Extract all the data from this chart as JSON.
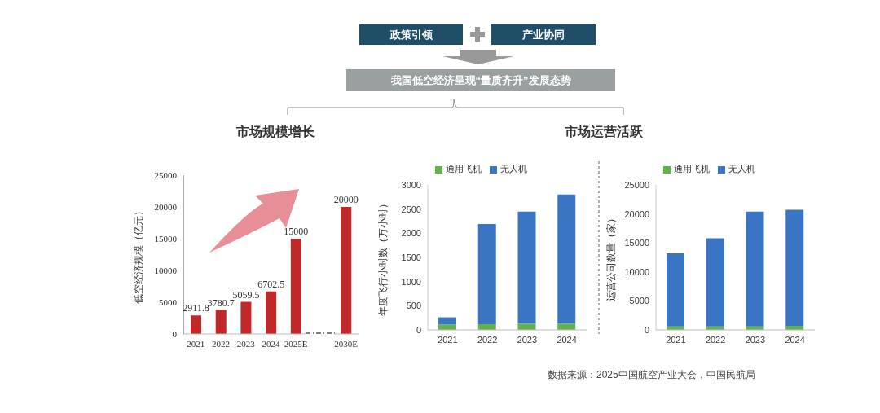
{
  "chart_data": [
    {
      "type": "bar",
      "title": "市场规模增长",
      "ylabel": "低空经济规模（亿元）",
      "annotations": [
        "政策引领",
        "产业协同",
        "我国低空经济呈现“量质齐升”发展态势"
      ],
      "categories": [
        "2021",
        "2022",
        "2023",
        "2024",
        "2025E",
        null,
        "2030E"
      ],
      "values": [
        2911.8,
        3780.7,
        5059.5,
        6702.5,
        15000,
        null,
        20000
      ],
      "color": "#c0282a",
      "ylim": [
        0,
        25000
      ],
      "yticks": [
        0,
        5000,
        10000,
        15000,
        20000,
        25000
      ],
      "data_labels": true
    },
    {
      "type": "bar",
      "title": "市场运营活跃",
      "ylabel": "年度飞行小时数（万小时）",
      "categories": [
        "2021",
        "2022",
        "2023",
        "2024"
      ],
      "stacked": true,
      "legend": "top",
      "ylim": [
        0,
        3000
      ],
      "yticks": [
        0,
        500,
        1000,
        1500,
        2000,
        2500,
        3000
      ],
      "series": [
        {
          "name": "通用飞机",
          "color": "#62b34a",
          "values": [
            110,
            120,
            130,
            130
          ]
        },
        {
          "name": "无人机",
          "color": "#3a75c4",
          "values": [
            150,
            2070,
            2320,
            2670
          ]
        }
      ]
    },
    {
      "type": "bar",
      "ylabel": "运营公司数量（家）",
      "categories": [
        "2021",
        "2022",
        "2023",
        "2024"
      ],
      "stacked": true,
      "legend": "top",
      "ylim": [
        0,
        25000
      ],
      "yticks": [
        0,
        5000,
        10000,
        15000,
        20000,
        25000
      ],
      "annotations": [
        "数据来源：2025中国航空产业大会，中国民航局"
      ],
      "series": [
        {
          "name": "通用飞机",
          "color": "#62b34a",
          "values": [
            600,
            600,
            600,
            700
          ]
        },
        {
          "name": "无人机",
          "color": "#3a75c4",
          "values": [
            12600,
            15200,
            19800,
            20000
          ]
        }
      ]
    }
  ]
}
